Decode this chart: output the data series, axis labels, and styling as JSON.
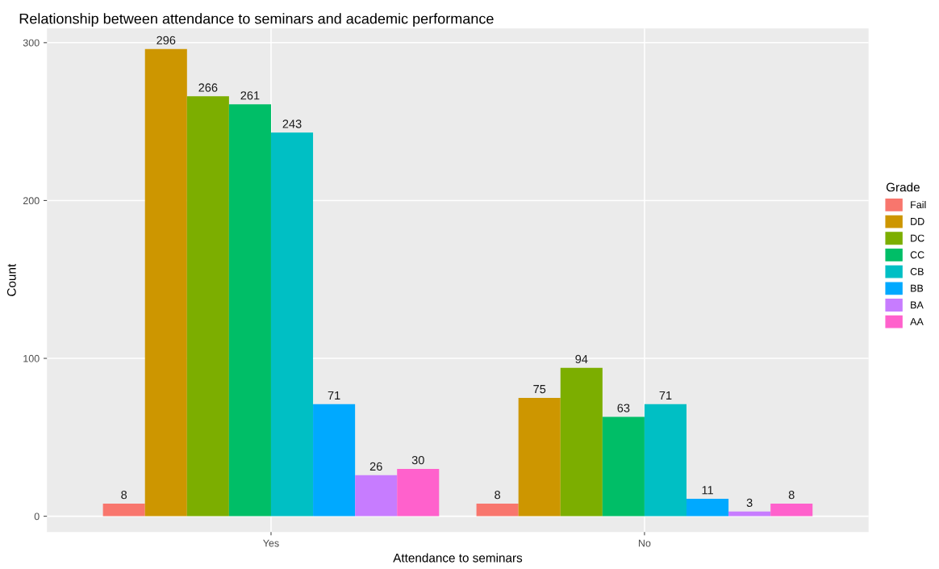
{
  "chart_data": {
    "type": "bar",
    "title": "Relationship between attendance to seminars and academic performance",
    "xlabel": "Attendance to seminars",
    "ylabel": "Count",
    "legend_title": "Grade",
    "categories": [
      "Yes",
      "No"
    ],
    "series": [
      {
        "name": "Fail",
        "color": "#f8766d",
        "values": [
          8,
          8
        ]
      },
      {
        "name": "DD",
        "color": "#cd9600",
        "values": [
          296,
          75
        ]
      },
      {
        "name": "DC",
        "color": "#7cae00",
        "values": [
          266,
          94
        ]
      },
      {
        "name": "CC",
        "color": "#00be67",
        "values": [
          261,
          63
        ]
      },
      {
        "name": "CB",
        "color": "#00bfc4",
        "values": [
          243,
          71
        ]
      },
      {
        "name": "BB",
        "color": "#00a9ff",
        "values": [
          71,
          11
        ]
      },
      {
        "name": "BA",
        "color": "#c77cff",
        "values": [
          26,
          3
        ]
      },
      {
        "name": "AA",
        "color": "#ff61cc",
        "values": [
          30,
          8
        ]
      }
    ],
    "ylim": [
      -10,
      309
    ],
    "yticks": [
      0,
      100,
      200,
      300
    ],
    "grid": true,
    "legend": "right",
    "data_labels": true
  }
}
